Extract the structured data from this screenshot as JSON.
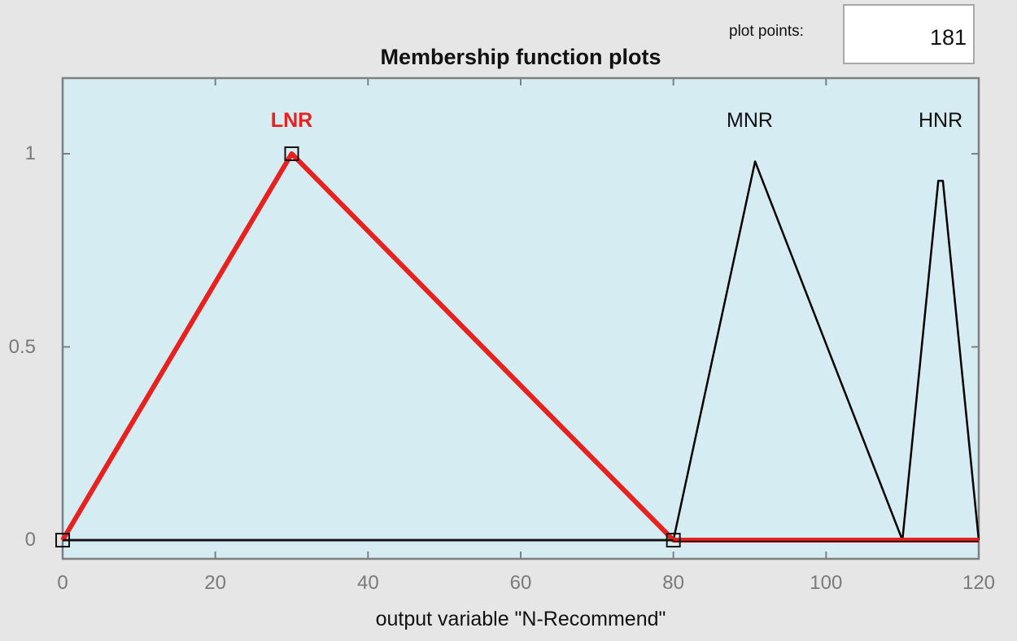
{
  "plot_points": {
    "label": "plot points:",
    "value": "181"
  },
  "chart_data": {
    "type": "line",
    "title": "Membership function plots",
    "xlabel": "output variable \"N-Recommend\"",
    "ylabel": "",
    "xlim": [
      0,
      120
    ],
    "ylim": [
      -0.05,
      1.2
    ],
    "x_ticks": [
      "0",
      "20",
      "40",
      "60",
      "80",
      "100",
      "120"
    ],
    "y_ticks": [
      "0",
      "0.5",
      "1"
    ],
    "grid": false,
    "background": "#d4ecf2",
    "series": [
      {
        "name": "LNR",
        "color": "#e8201e",
        "selected": true,
        "x": [
          0,
          30,
          80,
          120
        ],
        "y": [
          0,
          1,
          0,
          0
        ]
      },
      {
        "name": "MNR",
        "color": "#000000",
        "selected": false,
        "x": [
          0,
          80,
          90.7,
          110,
          120
        ],
        "y": [
          0,
          0,
          0.98,
          0,
          0
        ]
      },
      {
        "name": "HNR",
        "color": "#000000",
        "selected": false,
        "x": [
          0,
          110,
          114.7,
          115.3,
          120
        ],
        "y": [
          0,
          0,
          0.93,
          0.93,
          0
        ]
      }
    ],
    "labels": [
      {
        "text": "LNR",
        "x": 30,
        "color": "#e8201e"
      },
      {
        "text": "MNR",
        "x": 90,
        "color": "#111111"
      },
      {
        "text": "HNR",
        "x": 115,
        "color": "#111111"
      }
    ]
  }
}
